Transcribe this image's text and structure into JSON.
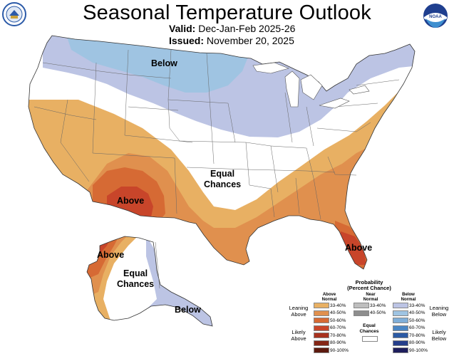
{
  "header": {
    "title": "Seasonal Temperature Outlook",
    "valid_label": "Valid:",
    "valid_value": "Dec-Jan-Feb 2025-26",
    "issued_label": "Issued:",
    "issued_value": "November 20, 2025"
  },
  "logos": {
    "left_text": "NOAA",
    "right_text": "NOAA"
  },
  "map_labels": {
    "below_north": "Below",
    "equal_center_1": "Equal",
    "equal_center_2": "Chances",
    "above_southwest": "Above",
    "above_florida": "Above",
    "above_alaska": "Above",
    "equal_alaska_1": "Equal",
    "equal_alaska_2": "Chances",
    "below_alaska": "Below"
  },
  "legend": {
    "title_1": "Probability",
    "title_2": "(Percent Chance)",
    "col_above_1": "Above",
    "col_above_2": "Normal",
    "col_near_1": "Near",
    "col_near_2": "Normal",
    "col_below_1": "Below",
    "col_below_2": "Normal",
    "leaning_above_1": "Leaning",
    "leaning_above_2": "Above",
    "likely_above_1": "Likely",
    "likely_above_2": "Above",
    "leaning_below_1": "Leaning",
    "leaning_below_2": "Below",
    "likely_below_1": "Likely",
    "likely_below_2": "Below",
    "equal_1": "Equal",
    "equal_2": "Chances",
    "above_bins": [
      {
        "label": "33-40%",
        "color": "#E8B063"
      },
      {
        "label": "40-50%",
        "color": "#E0904E"
      },
      {
        "label": "50-60%",
        "color": "#D66A34"
      },
      {
        "label": "60-70%",
        "color": "#C8452A"
      },
      {
        "label": "70-80%",
        "color": "#A8321E"
      },
      {
        "label": "80-90%",
        "color": "#842616"
      },
      {
        "label": "90-100%",
        "color": "#5C1A0E"
      }
    ],
    "near_bins": [
      {
        "label": "33-40%",
        "color": "#BEBEBE"
      },
      {
        "label": "40-50%",
        "color": "#8E8E8E"
      }
    ],
    "below_bins": [
      {
        "label": "33-40%",
        "color": "#BCC4E4"
      },
      {
        "label": "40-50%",
        "color": "#9FC4E2"
      },
      {
        "label": "50-60%",
        "color": "#7FAED8"
      },
      {
        "label": "60-70%",
        "color": "#4A86C4"
      },
      {
        "label": "70-80%",
        "color": "#2C5AA4"
      },
      {
        "label": "80-90%",
        "color": "#253E8A"
      },
      {
        "label": "90-100%",
        "color": "#1E1E5C"
      }
    ]
  }
}
